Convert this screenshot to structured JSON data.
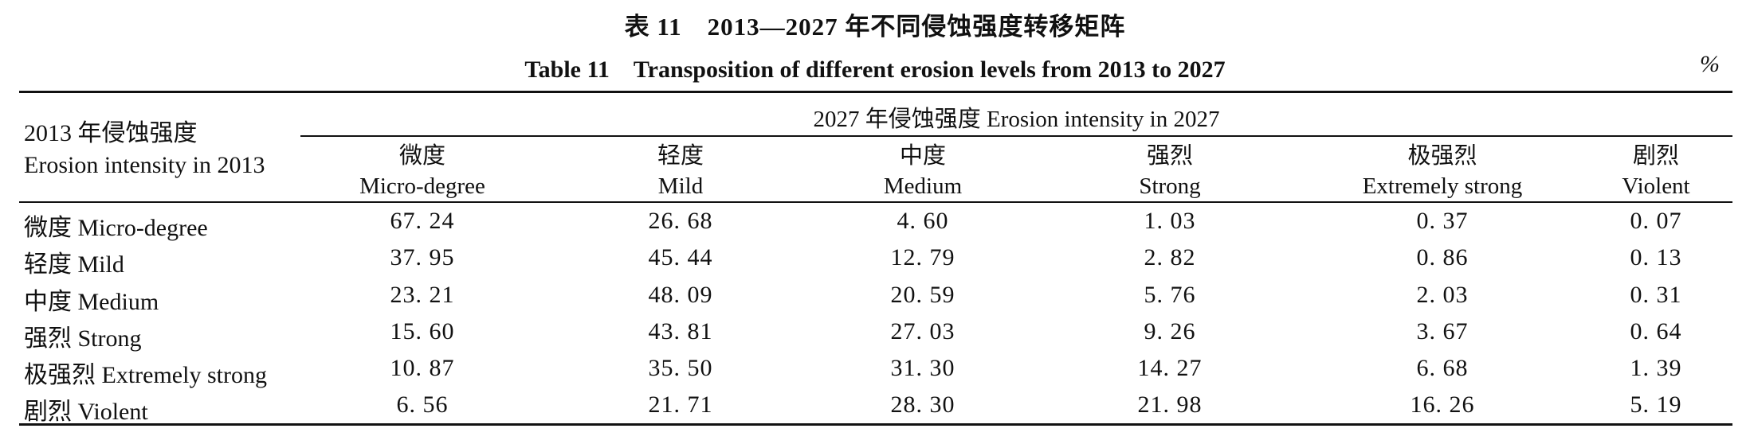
{
  "caption": {
    "cn": "表 11　2013—2027 年不同侵蚀强度转移矩阵",
    "en": "Table 11　Transposition of different erosion levels from 2013 to 2027",
    "unit": "%"
  },
  "table": {
    "stub_header": {
      "cn": "2013 年侵蚀强度",
      "en": "Erosion intensity in 2013"
    },
    "span_header": "2027 年侵蚀强度 Erosion intensity in 2027",
    "columns": [
      {
        "cn": "微度",
        "en": "Micro-degree"
      },
      {
        "cn": "轻度",
        "en": "Mild"
      },
      {
        "cn": "中度",
        "en": "Medium"
      },
      {
        "cn": "强烈",
        "en": "Strong"
      },
      {
        "cn": "极强烈",
        "en": "Extremely strong"
      },
      {
        "cn": "剧烈",
        "en": "Violent"
      }
    ],
    "rows": [
      {
        "label": "微度 Micro-degree",
        "values": [
          "67. 24",
          "26. 68",
          "4. 60",
          "1. 03",
          "0. 37",
          "0. 07"
        ]
      },
      {
        "label": "轻度 Mild",
        "values": [
          "37. 95",
          "45. 44",
          "12. 79",
          "2. 82",
          "0. 86",
          "0. 13"
        ]
      },
      {
        "label": "中度 Medium",
        "values": [
          "23. 21",
          "48. 09",
          "20. 59",
          "5. 76",
          "2. 03",
          "0. 31"
        ]
      },
      {
        "label": "强烈 Strong",
        "values": [
          "15. 60",
          "43. 81",
          "27. 03",
          "9. 26",
          "3. 67",
          "0. 64"
        ]
      },
      {
        "label": "极强烈 Extremely strong",
        "values": [
          "10. 87",
          "35. 50",
          "31. 30",
          "14. 27",
          "6. 68",
          "1. 39"
        ]
      },
      {
        "label": "剧烈 Violent",
        "values": [
          "6. 56",
          "21. 71",
          "28. 30",
          "21. 98",
          "16. 26",
          "5. 19"
        ]
      }
    ]
  }
}
